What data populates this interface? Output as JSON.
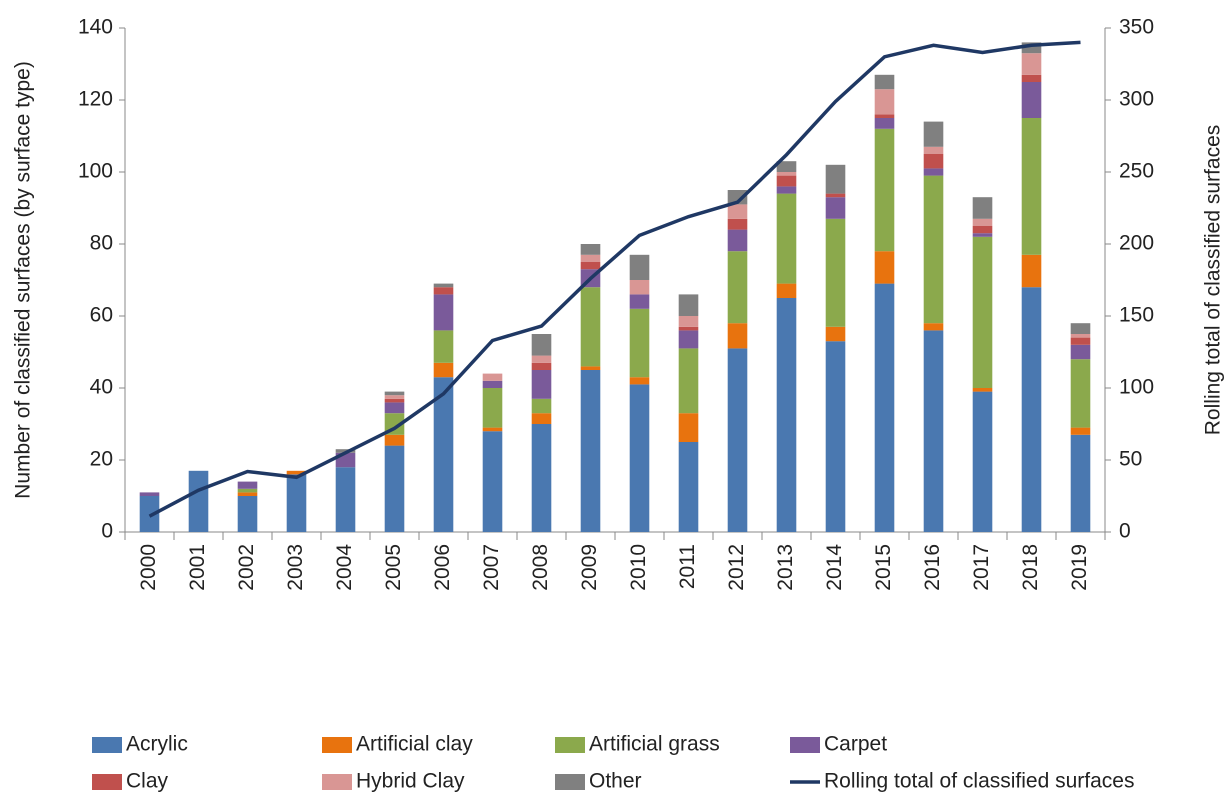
{
  "chart_data": {
    "type": "stacked_bar_line",
    "y_label": "Number of classified surfaces (by surface type)",
    "y2_label": "Rolling total of classified surfaces",
    "categories": [
      "2000",
      "2001",
      "2002",
      "2003",
      "2004",
      "2005",
      "2006",
      "2007",
      "2008",
      "2009",
      "2010",
      "2011",
      "2012",
      "2013",
      "2014",
      "2015",
      "2016",
      "2017",
      "2018",
      "2019"
    ],
    "series": [
      {
        "name": "Acrylic",
        "color": "#4a78b0",
        "values": [
          10,
          17,
          10,
          16,
          18,
          24,
          43,
          28,
          30,
          45,
          41,
          25,
          51,
          65,
          53,
          69,
          56,
          39,
          68,
          27
        ]
      },
      {
        "name": "Artificial clay",
        "color": "#e8730e",
        "values": [
          0,
          0,
          1,
          1,
          0,
          3,
          4,
          1,
          3,
          1,
          2,
          8,
          7,
          4,
          4,
          9,
          2,
          1,
          9,
          2
        ]
      },
      {
        "name": "Artificial grass",
        "color": "#8ba94c",
        "values": [
          0,
          0,
          1,
          0,
          0,
          6,
          9,
          11,
          4,
          22,
          19,
          18,
          20,
          25,
          30,
          34,
          41,
          42,
          38,
          19
        ]
      },
      {
        "name": "Carpet",
        "color": "#7a5a9a",
        "values": [
          1,
          0,
          2,
          0,
          4,
          3,
          10,
          2,
          8,
          5,
          4,
          5,
          6,
          2,
          6,
          3,
          2,
          1,
          10,
          4
        ]
      },
      {
        "name": "Clay",
        "color": "#c0504d",
        "values": [
          0,
          0,
          0,
          0,
          0,
          1,
          2,
          0,
          2,
          2,
          0,
          1,
          3,
          3,
          1,
          1,
          4,
          2,
          2,
          2
        ]
      },
      {
        "name": "Hybrid Clay",
        "color": "#d99694",
        "values": [
          0,
          0,
          0,
          0,
          0,
          1,
          0,
          2,
          2,
          2,
          4,
          3,
          4,
          1,
          0,
          7,
          2,
          2,
          6,
          1
        ]
      },
      {
        "name": "Other",
        "color": "#808080",
        "values": [
          0,
          0,
          0,
          0,
          1,
          1,
          1,
          0,
          6,
          3,
          7,
          6,
          4,
          3,
          8,
          4,
          7,
          6,
          3,
          3
        ]
      },
      {
        "name": "Rolling total of classified surfaces",
        "color": "#1f3864",
        "axis": "y2",
        "kind": "line",
        "values": [
          11,
          29,
          42,
          38,
          55,
          72,
          96,
          133,
          143,
          176,
          206,
          219,
          229,
          262,
          299,
          330,
          338,
          333,
          338,
          340
        ]
      }
    ],
    "ylim": [
      0,
      140
    ],
    "yticks": [
      0,
      20,
      40,
      60,
      80,
      100,
      120,
      140
    ],
    "y2lim": [
      0,
      350
    ],
    "y2ticks": [
      0,
      50,
      100,
      150,
      200,
      250,
      300,
      350
    ],
    "grid": false,
    "legend": "bottom"
  }
}
